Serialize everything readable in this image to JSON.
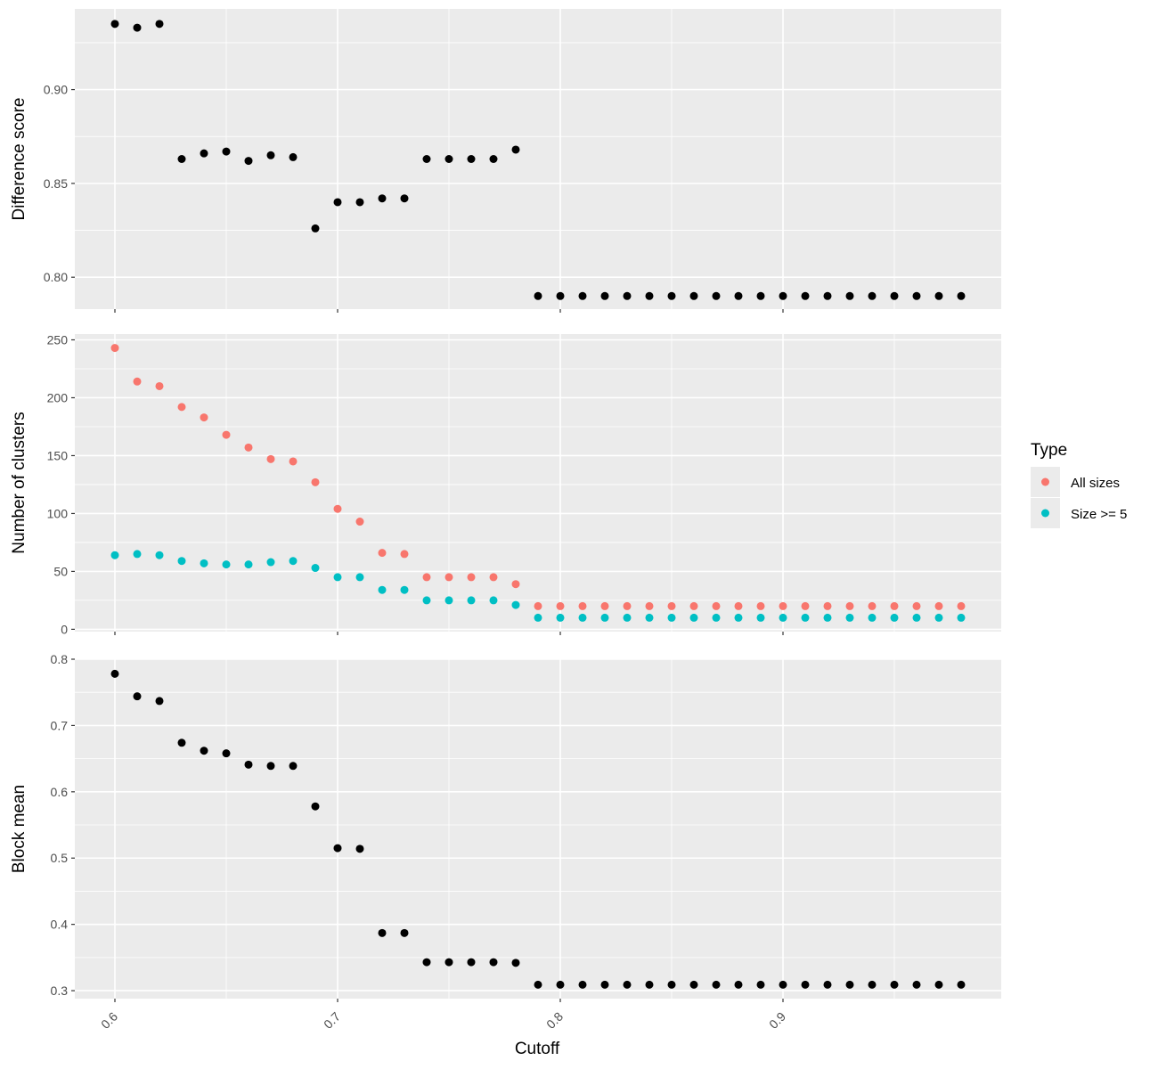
{
  "chart_data": {
    "type": "scatter",
    "xlabel": "Cutoff",
    "x_ticks": [
      "0.6",
      "0.7",
      "0.8",
      "0.9"
    ],
    "xlim": [
      0.582,
      0.998
    ],
    "grid": true,
    "x": [
      0.6,
      0.61,
      0.62,
      0.63,
      0.64,
      0.65,
      0.66,
      0.67,
      0.68,
      0.69,
      0.7,
      0.71,
      0.72,
      0.73,
      0.74,
      0.75,
      0.76,
      0.77,
      0.78,
      0.79,
      0.8,
      0.81,
      0.82,
      0.83,
      0.84,
      0.85,
      0.86,
      0.87,
      0.88,
      0.89,
      0.9,
      0.91,
      0.92,
      0.93,
      0.94,
      0.95,
      0.96,
      0.97,
      0.98
    ],
    "panels": [
      {
        "ylabel": "Difference score",
        "y_ticks": [
          "0.80",
          "0.85",
          "0.90"
        ],
        "ylim": [
          0.783,
          0.943
        ],
        "series": [
          {
            "color": "#000000",
            "values": [
              0.935,
              0.933,
              0.935,
              0.863,
              0.866,
              0.867,
              0.862,
              0.865,
              0.864,
              0.826,
              0.84,
              0.84,
              0.842,
              0.842,
              0.863,
              0.863,
              0.863,
              0.863,
              0.868,
              0.79,
              0.79,
              0.79,
              0.79,
              0.79,
              0.79,
              0.79,
              0.79,
              0.79,
              0.79,
              0.79,
              0.79,
              0.79,
              0.79,
              0.79,
              0.79,
              0.79,
              0.79,
              0.79,
              0.79
            ]
          }
        ]
      },
      {
        "ylabel": "Number of clusters",
        "y_ticks": [
          "0",
          "50",
          "100",
          "150",
          "200",
          "250"
        ],
        "ylim": [
          -2,
          255
        ],
        "series": [
          {
            "name": "All sizes",
            "color": "#F8766D",
            "values": [
              243,
              214,
              210,
              192,
              183,
              168,
              157,
              147,
              145,
              127,
              104,
              93,
              66,
              65,
              45,
              45,
              45,
              45,
              39,
              20,
              20,
              20,
              20,
              20,
              20,
              20,
              20,
              20,
              20,
              20,
              20,
              20,
              20,
              20,
              20,
              20,
              20,
              20,
              20
            ]
          },
          {
            "name": "Size >= 5",
            "color": "#00BFC4",
            "values": [
              64,
              65,
              64,
              59,
              57,
              56,
              56,
              58,
              59,
              53,
              45,
              45,
              34,
              34,
              25,
              25,
              25,
              25,
              21,
              10,
              10,
              10,
              10,
              10,
              10,
              10,
              10,
              10,
              10,
              10,
              10,
              10,
              10,
              10,
              10,
              10,
              10,
              10,
              10
            ]
          }
        ]
      },
      {
        "ylabel": "Block mean",
        "y_ticks": [
          "0.3",
          "0.4",
          "0.5",
          "0.6",
          "0.7",
          "0.8"
        ],
        "ylim": [
          0.288,
          0.8
        ],
        "series": [
          {
            "color": "#000000",
            "values": [
              0.778,
              0.744,
              0.737,
              0.674,
              0.662,
              0.658,
              0.641,
              0.639,
              0.639,
              0.578,
              0.515,
              0.514,
              0.387,
              0.387,
              0.343,
              0.343,
              0.343,
              0.343,
              0.342,
              0.309,
              0.309,
              0.309,
              0.309,
              0.309,
              0.309,
              0.309,
              0.309,
              0.309,
              0.309,
              0.309,
              0.309,
              0.309,
              0.309,
              0.309,
              0.309,
              0.309,
              0.309,
              0.309,
              0.309
            ]
          }
        ]
      }
    ],
    "legend": {
      "title": "Type",
      "position": "right",
      "items": [
        {
          "label": "All sizes",
          "color": "#F8766D"
        },
        {
          "label": "Size >= 5",
          "color": "#00BFC4"
        }
      ]
    }
  }
}
